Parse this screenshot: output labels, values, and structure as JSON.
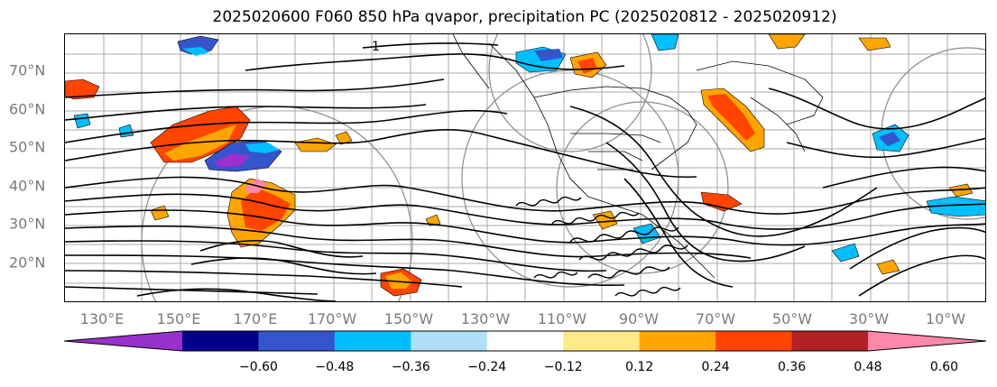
{
  "title": "2025020600 F060 850 hPa qvapor, precipitation PC (2025020812 - 2025020912)",
  "lat_labels": [
    "70°N",
    "60°N",
    "50°N",
    "40°N",
    "30°N",
    "20°N"
  ],
  "lon_labels": [
    "130°E",
    "150°E",
    "170°E",
    "170°W",
    "150°W",
    "130°W",
    "110°W",
    "90°W",
    "70°W",
    "50°W",
    "30°W",
    "10°W"
  ],
  "contour_label": "1",
  "colorbar": {
    "ticks": [
      "−0.60",
      "−0.48",
      "−0.36",
      "−0.24",
      "−0.12",
      "0.12",
      "0.24",
      "0.36",
      "0.48",
      "0.60"
    ],
    "colors": [
      "#9a30cc",
      "#00008b",
      "#3555cc",
      "#00bfff",
      "#aee0f7",
      "#ffffff",
      "#ffe98a",
      "#ffa500",
      "#ff4500",
      "#b22222",
      "#ff88aa"
    ]
  }
}
